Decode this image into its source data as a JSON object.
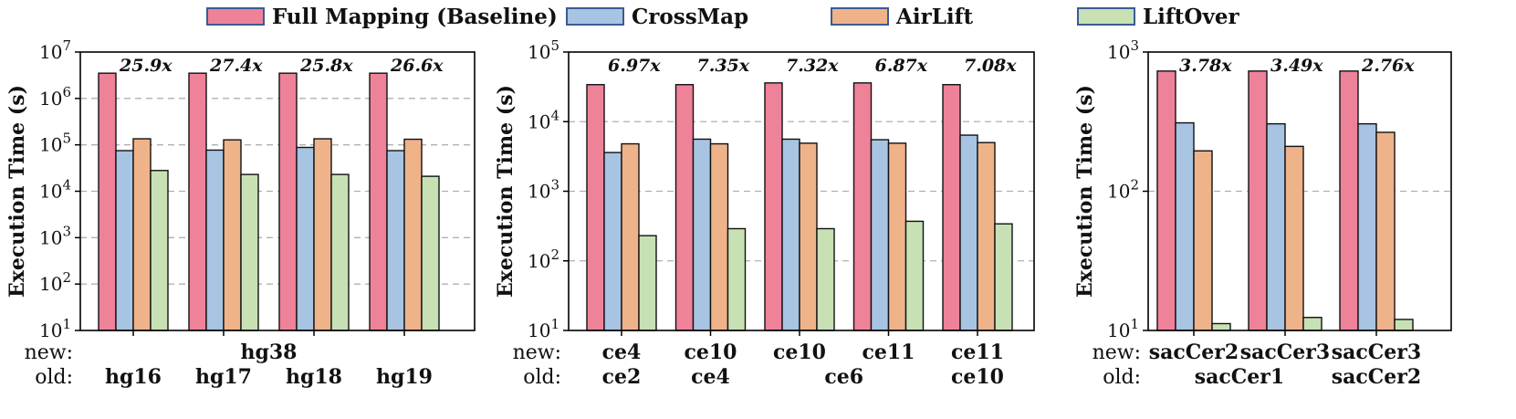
{
  "legend": [
    {
      "label": "Full Mapping (Baseline)",
      "color": "#ee8299"
    },
    {
      "label": "CrossMap",
      "color": "#a8c4e3"
    },
    {
      "label": "AirLift",
      "color": "#efb38a"
    },
    {
      "label": "LiftOver",
      "color": "#c7e1b5"
    }
  ],
  "chart_data": [
    {
      "type": "bar",
      "yscale": "log",
      "ylabel": "Execution Time (s)",
      "ylim_exp": [
        1,
        7
      ],
      "ytick_labels": [
        {
          "base": "10",
          "exp": "1"
        },
        {
          "base": "10",
          "exp": "2"
        },
        {
          "base": "10",
          "exp": "3"
        },
        {
          "base": "10",
          "exp": "4"
        },
        {
          "base": "10",
          "exp": "5"
        },
        {
          "base": "10",
          "exp": "6"
        },
        {
          "base": "10",
          "exp": "7"
        }
      ],
      "row_labels": {
        "new": "new:",
        "old": "old:"
      },
      "new_labels": [
        {
          "text": "hg38",
          "span": [
            0,
            3
          ]
        }
      ],
      "old_labels": [
        {
          "text": "hg16",
          "span": [
            0,
            0
          ]
        },
        {
          "text": "hg17",
          "span": [
            1,
            1
          ]
        },
        {
          "text": "hg18",
          "span": [
            2,
            2
          ]
        },
        {
          "text": "hg19",
          "span": [
            3,
            3
          ]
        }
      ],
      "series": [
        {
          "name": "Full Mapping (Baseline)",
          "values": [
            3500000,
            3500000,
            3500000,
            3500000
          ]
        },
        {
          "name": "CrossMap",
          "values": [
            75000,
            77000,
            88000,
            75000
          ]
        },
        {
          "name": "AirLift",
          "values": [
            135000,
            128000,
            135000,
            132000
          ]
        },
        {
          "name": "LiftOver",
          "values": [
            28000,
            23000,
            23000,
            21000
          ]
        }
      ],
      "annotations": [
        "25.9x",
        "27.4x",
        "25.8x",
        "26.6x"
      ]
    },
    {
      "type": "bar",
      "yscale": "log",
      "ylabel": "Execution Time (s)",
      "ylim_exp": [
        1,
        5
      ],
      "ytick_labels": [
        {
          "base": "10",
          "exp": "1"
        },
        {
          "base": "10",
          "exp": "2"
        },
        {
          "base": "10",
          "exp": "3"
        },
        {
          "base": "10",
          "exp": "4"
        },
        {
          "base": "10",
          "exp": "5"
        }
      ],
      "row_labels": {
        "new": "new:",
        "old": "old:"
      },
      "new_labels": [
        {
          "text": "ce4",
          "span": [
            0,
            0
          ]
        },
        {
          "text": "ce10",
          "span": [
            1,
            1
          ]
        },
        {
          "text": "ce10",
          "span": [
            2,
            2
          ]
        },
        {
          "text": "ce11",
          "span": [
            3,
            3
          ]
        },
        {
          "text": "ce11",
          "span": [
            4,
            4
          ]
        }
      ],
      "old_labels": [
        {
          "text": "ce2",
          "span": [
            0,
            0
          ]
        },
        {
          "text": "ce4",
          "span": [
            1,
            1
          ]
        },
        {
          "text": "ce6",
          "span": [
            2,
            3
          ]
        },
        {
          "text": "ce10",
          "span": [
            4,
            4
          ]
        }
      ],
      "series": [
        {
          "name": "Full Mapping (Baseline)",
          "values": [
            34000,
            34000,
            36000,
            36000,
            34000
          ]
        },
        {
          "name": "CrossMap",
          "values": [
            3600,
            5600,
            5600,
            5500,
            6400
          ]
        },
        {
          "name": "AirLift",
          "values": [
            4800,
            4800,
            4900,
            4900,
            5000
          ]
        },
        {
          "name": "LiftOver",
          "values": [
            230,
            290,
            290,
            370,
            340
          ]
        }
      ],
      "annotations": [
        "6.97x",
        "7.35x",
        "7.32x",
        "6.87x",
        "7.08x"
      ]
    },
    {
      "type": "bar",
      "yscale": "log",
      "ylabel": "Execution Time (s)",
      "ylim_exp": [
        1,
        3
      ],
      "ytick_labels": [
        {
          "base": "10",
          "exp": "1"
        },
        {
          "base": "10",
          "exp": "2"
        },
        {
          "base": "10",
          "exp": "3"
        }
      ],
      "row_labels": {
        "new": "new:",
        "old": "old:"
      },
      "new_labels": [
        {
          "text": "sacCer2",
          "span": [
            0,
            0
          ]
        },
        {
          "text": "sacCer3",
          "span": [
            1,
            1
          ]
        },
        {
          "text": "sacCer3",
          "span": [
            2,
            2
          ]
        }
      ],
      "old_labels": [
        {
          "text": "sacCer1",
          "span": [
            0,
            1
          ]
        },
        {
          "text": "sacCer2",
          "span": [
            2,
            2
          ]
        }
      ],
      "series": [
        {
          "name": "Full Mapping (Baseline)",
          "values": [
            730,
            730,
            730
          ]
        },
        {
          "name": "CrossMap",
          "values": [
            310,
            305,
            305
          ]
        },
        {
          "name": "AirLift",
          "values": [
            195,
            210,
            265
          ]
        },
        {
          "name": "LiftOver",
          "values": [
            11.2,
            12.4,
            12.0
          ]
        }
      ],
      "annotations": [
        "3.78x",
        "3.49x",
        "2.76x"
      ]
    }
  ]
}
